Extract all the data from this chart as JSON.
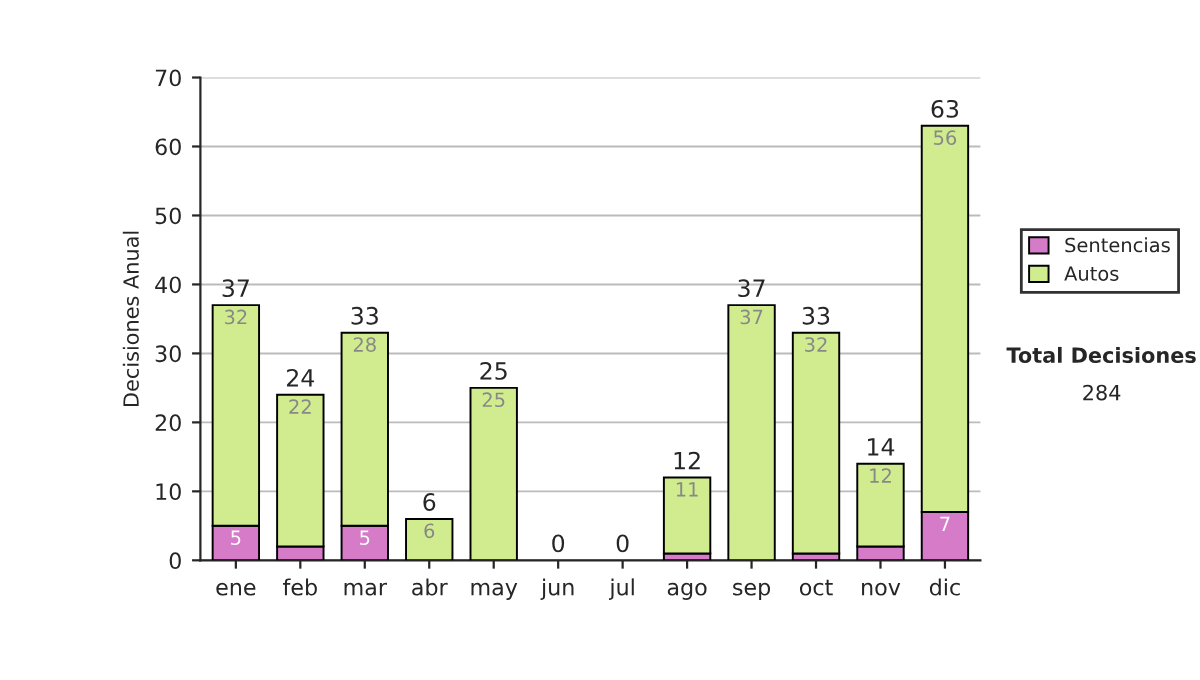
{
  "chart_data": {
    "type": "bar",
    "stacked": true,
    "ylabel": "Decisiones Anual",
    "categories": [
      "ene",
      "feb",
      "mar",
      "abr",
      "may",
      "jun",
      "jul",
      "ago",
      "sep",
      "oct",
      "nov",
      "dic"
    ],
    "series": [
      {
        "name": "Sentencias",
        "color": "#d67bc8",
        "values": [
          5,
          2,
          5,
          0,
          0,
          0,
          0,
          1,
          0,
          1,
          2,
          7
        ],
        "value_labels": [
          "5",
          null,
          "5",
          null,
          null,
          null,
          null,
          null,
          null,
          null,
          null,
          "7"
        ]
      },
      {
        "name": "Autos",
        "color": "#d0ec8e",
        "values": [
          32,
          22,
          28,
          6,
          25,
          0,
          0,
          11,
          37,
          32,
          12,
          56
        ],
        "value_labels": [
          "32",
          "22",
          "28",
          "6",
          "25",
          null,
          null,
          "11",
          "37",
          "32",
          "12",
          "56"
        ]
      }
    ],
    "totals": [
      "37",
      "24",
      "33",
      "6",
      "25",
      "0",
      "0",
      "12",
      "37",
      "33",
      "14",
      "63"
    ],
    "ylim": [
      0,
      70
    ],
    "yticks": [
      0,
      10,
      20,
      30,
      40,
      50,
      60,
      70
    ],
    "grid": "y",
    "legend": "right",
    "annotations": [
      "Total Decisiones",
      "284"
    ]
  }
}
